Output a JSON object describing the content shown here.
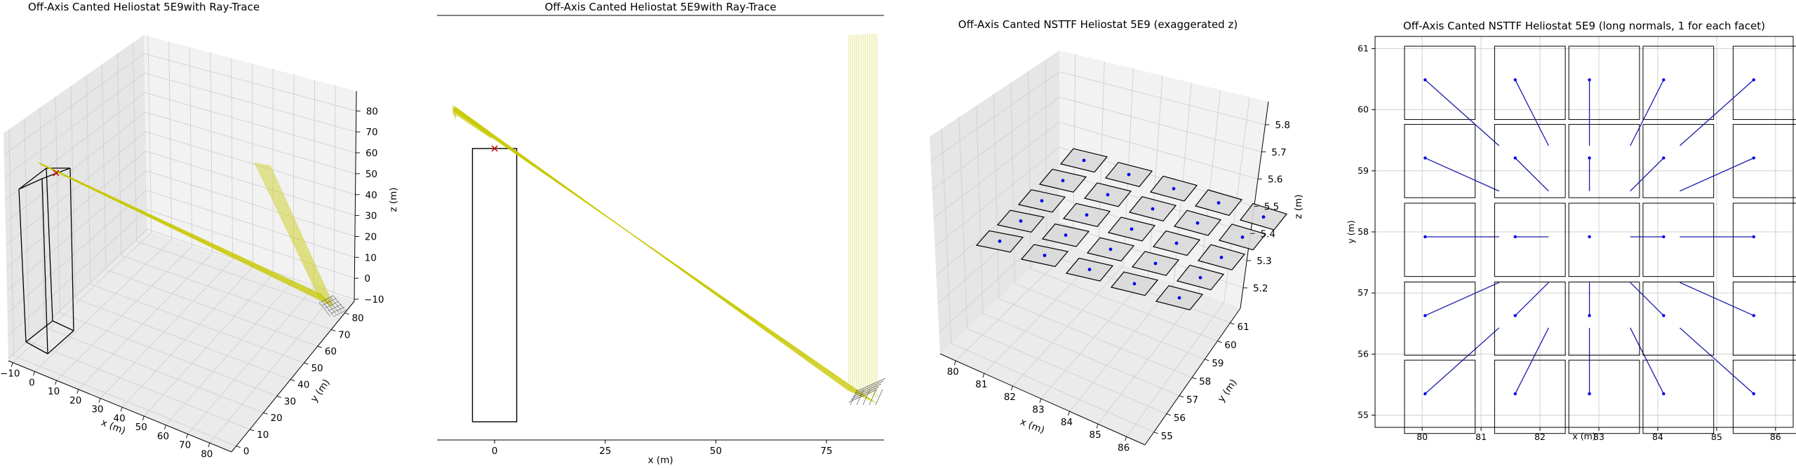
{
  "chart_data": [
    {
      "type": "line",
      "panel": "3d",
      "title": "Off-Axis Canted Heliostat 5E9with Ray-Trace",
      "xlabel": "x (m)",
      "ylabel": "y (m)",
      "zlabel": "z (m)",
      "xlim": [
        -10,
        80
      ],
      "ylim": [
        0,
        80
      ],
      "zlim": [
        -10,
        80
      ],
      "xticks": [
        "−10",
        "0",
        "10",
        "20",
        "30",
        "40",
        "50",
        "60",
        "70",
        "80"
      ],
      "yticks": [
        "0",
        "10",
        "20",
        "30",
        "40",
        "50",
        "60",
        "70",
        "80"
      ],
      "zticks": [
        "−10",
        "0",
        "10",
        "20",
        "30",
        "40",
        "50",
        "60",
        "70",
        "80"
      ],
      "tower_box": {
        "x": [
          -5,
          5
        ],
        "y": [
          -5,
          5
        ],
        "z": [
          0,
          62
        ]
      },
      "aim_point": [
        0,
        0,
        60
      ],
      "heliostat_center": [
        83,
        58,
        2
      ],
      "ray_color": "#c8c800",
      "grid": true
    },
    {
      "type": "line",
      "panel": "2d",
      "title": "Off-Axis Canted Heliostat 5E9with Ray-Trace",
      "xlabel": "x (m)",
      "xlim": [
        -13,
        88
      ],
      "xticks": [
        0,
        25,
        50,
        75
      ],
      "tower_box": {
        "x": [
          -5,
          5
        ],
        "z": [
          -5,
          62
        ]
      },
      "aim_point": [
        0,
        60
      ],
      "ray_color": "#c8c800"
    },
    {
      "type": "scatter",
      "panel": "3d",
      "title": "Off-Axis Canted NSTTF Heliostat 5E9 (exaggerated z)",
      "xlabel": "x (m)",
      "ylabel": "y (m)",
      "zlabel": "z (m)",
      "xticks": [
        "80",
        "81",
        "82",
        "83",
        "84",
        "85",
        "86"
      ],
      "yticks": [
        "55",
        "56",
        "57",
        "58",
        "59",
        "60",
        "61"
      ],
      "zticks": [
        "5.2",
        "5.3",
        "5.4",
        "5.5",
        "5.6",
        "5.7",
        "5.8"
      ],
      "facet_columns_x": [
        80.05,
        81.58,
        82.84,
        84.1,
        85.63
      ],
      "facet_rows_y": [
        55.35,
        56.63,
        57.92,
        59.21,
        60.49
      ],
      "marker_color": "#0000ee",
      "grid": true
    },
    {
      "type": "scatter",
      "panel": "2d",
      "title": "Off-Axis Canted NSTTF Heliostat 5E9 (long normals, 1 for each facet)",
      "xlabel": "x (m)",
      "ylabel": "y (m)",
      "xlim": [
        79.2,
        86.3
      ],
      "ylim": [
        54.8,
        61.2
      ],
      "xticks": [
        80,
        81,
        82,
        83,
        84,
        85,
        86
      ],
      "yticks": [
        55,
        56,
        57,
        58,
        59,
        60,
        61
      ],
      "facet_half_width": 0.6,
      "facet_columns_x": [
        80.05,
        81.58,
        82.84,
        84.1,
        85.63
      ],
      "facet_rows_y": [
        55.35,
        56.63,
        57.92,
        59.21,
        60.49
      ],
      "marker_color": "#0000ee",
      "grid": true
    }
  ]
}
